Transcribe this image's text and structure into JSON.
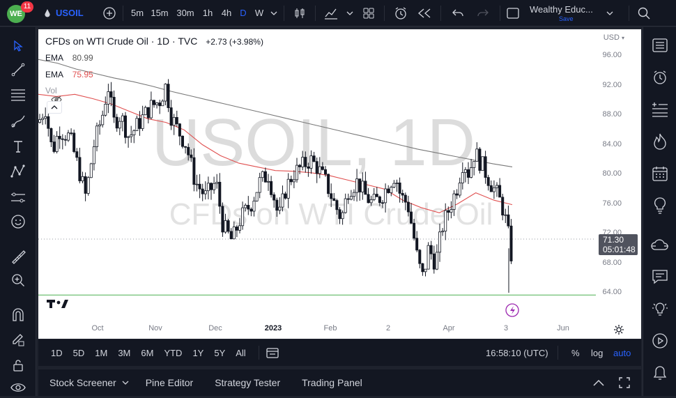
{
  "topbar": {
    "badge_count": "11",
    "symbol": "USOIL",
    "intervals": [
      "5m",
      "15m",
      "30m",
      "1h",
      "4h",
      "D",
      "W"
    ],
    "active_interval": "D",
    "account_name": "Wealthy Educ...",
    "account_sub": "Save"
  },
  "legend": {
    "title": "CFDs on WTI Crude Oil · 1D · TVC",
    "change": "+2.73 (+3.98%)",
    "ema1_label": "EMA",
    "ema1_value": "80.99",
    "ema2_label": "EMA",
    "ema2_value": "75.95",
    "vol_label": "Vol"
  },
  "watermark": {
    "symbol": "USOIL, 1D",
    "name": "CFDs on WTI Crude Oil"
  },
  "price_axis": {
    "currency": "USD",
    "labels": [
      "96.00",
      "92.00",
      "88.00",
      "84.00",
      "80.00",
      "76.00",
      "72.00",
      "68.00",
      "64.00"
    ],
    "current_price": "71.30",
    "countdown": "05:01:48"
  },
  "time_axis": {
    "labels": [
      "Oct",
      "Nov",
      "Dec",
      "2023",
      "Feb",
      "2",
      "Apr",
      "3",
      "Jun"
    ]
  },
  "ranges": [
    "1D",
    "5D",
    "1M",
    "3M",
    "6M",
    "YTD",
    "1Y",
    "5Y",
    "All"
  ],
  "clock": "16:58:10 (UTC)",
  "scale_options": {
    "percent": "%",
    "log": "log",
    "auto": "auto"
  },
  "panel_tabs": [
    "Stock Screener",
    "Pine Editor",
    "Strategy Tester",
    "Trading Panel"
  ],
  "colors": {
    "up": "#131722",
    "down": "#131722",
    "ema_slow": "#787878",
    "ema_fast": "#e05050",
    "support_line": "#4caf50",
    "accent": "#2962ff"
  },
  "chart_data": {
    "type": "candlestick",
    "y_range": [
      62.5,
      98
    ],
    "support_level": 63.7,
    "ema_slow": [
      95.5,
      95.0,
      94.2,
      93.6,
      93.0,
      92.5,
      91.9,
      91.2,
      90.6,
      90.0,
      89.4,
      88.8,
      88.2,
      87.6,
      87.0,
      86.4,
      85.8,
      85.2,
      84.6,
      84.0,
      83.4,
      82.9,
      82.4,
      81.9,
      81.4,
      81.0
    ],
    "ema_fast": [
      90.8,
      90.5,
      90.8,
      90.2,
      89.5,
      88.5,
      87.5,
      87.0,
      86.0,
      84.0,
      82.5,
      81.5,
      81.0,
      80.5,
      80.4,
      80.2,
      79.8,
      79.2,
      78.6,
      78.0,
      76.5,
      75.5,
      74.8,
      76.0,
      77.5,
      76.5,
      75.9
    ]
  }
}
